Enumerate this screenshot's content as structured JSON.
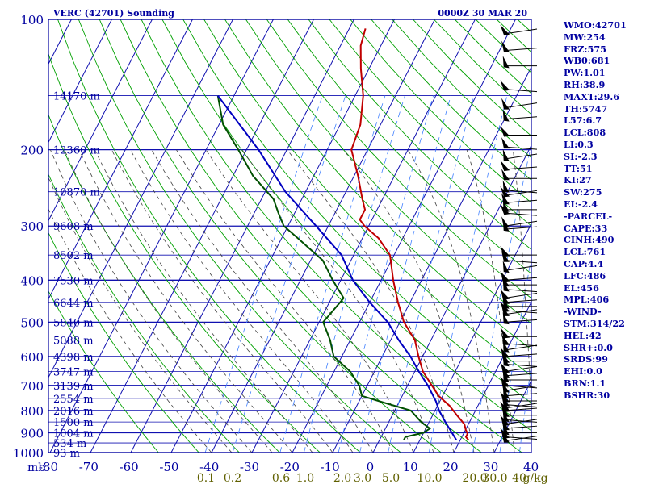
{
  "title_left": "VERC (42701) Sounding",
  "title_right": "0000Z 30 MAR 20",
  "colors": {
    "frame": "#0000a0",
    "isobar": "#1010b0",
    "isotherm": "#1010b0",
    "dry_adiabat": "#00a000",
    "moist_adiabat": "#404040",
    "mixing_ratio": "#4080ff",
    "temperature": "#c00000",
    "dewpoint": "#005000",
    "parcel": "#0000c0",
    "wind": "#000000",
    "mixing_label": "#606000"
  },
  "chart_data": {
    "type": "line",
    "subtype": "skew-T log-p sounding",
    "ylabel": "mb",
    "xlabel": "",
    "y_scale": "log (inverted)",
    "ylim": [
      1000,
      100
    ],
    "xlim": [
      -80,
      40
    ],
    "pressure_ticks": [
      "100",
      "200",
      "300",
      "400",
      "500",
      "600",
      "700",
      "800",
      "900",
      "1000"
    ],
    "temperature_ticks": [
      "-80",
      "-70",
      "-60",
      "-50",
      "-40",
      "-30",
      "-20",
      "-10",
      "0",
      "10",
      "20",
      "30",
      "40"
    ],
    "mixing_ratio_ticks": [
      "0.1",
      "0.2",
      "0.6",
      "1.0",
      "2.0",
      "3.0",
      "5.0",
      "10.0",
      "20.0",
      "30.0",
      "40",
      "g/kg"
    ],
    "height_labels": [
      "14170 m",
      "12360 m",
      "10870 m",
      "9608 m",
      "8502 m",
      "7530 m",
      "6644 m",
      "5840 m",
      "5088 m",
      "4398 m",
      "3747 m",
      "3139 m",
      "2554 m",
      "2016 m",
      "1500 m",
      "1004 m",
      "534 m",
      "93 m"
    ],
    "height_pressures": [
      150,
      200,
      250,
      300,
      350,
      400,
      450,
      500,
      550,
      600,
      650,
      700,
      750,
      800,
      850,
      900,
      950,
      1000
    ],
    "series": [
      {
        "name": "Temperature",
        "points": [
          [
            105,
            -56
          ],
          [
            115,
            -55
          ],
          [
            130,
            -52
          ],
          [
            150,
            -48
          ],
          [
            175,
            -45
          ],
          [
            200,
            -44
          ],
          [
            230,
            -39
          ],
          [
            260,
            -35
          ],
          [
            275,
            -33
          ],
          [
            290,
            -33
          ],
          [
            300,
            -31
          ],
          [
            320,
            -26
          ],
          [
            350,
            -21
          ],
          [
            400,
            -17
          ],
          [
            450,
            -13
          ],
          [
            500,
            -9
          ],
          [
            550,
            -4
          ],
          [
            600,
            -1
          ],
          [
            650,
            2
          ],
          [
            700,
            6
          ],
          [
            740,
            9
          ],
          [
            780,
            13
          ],
          [
            820,
            16
          ],
          [
            860,
            19
          ],
          [
            885,
            20
          ],
          [
            905,
            21
          ],
          [
            920,
            21
          ],
          [
            935,
            22
          ]
        ]
      },
      {
        "name": "Dewpoint",
        "points": [
          [
            150,
            -84
          ],
          [
            175,
            -79
          ],
          [
            200,
            -72
          ],
          [
            230,
            -65
          ],
          [
            260,
            -57
          ],
          [
            280,
            -54
          ],
          [
            300,
            -51
          ],
          [
            320,
            -46
          ],
          [
            360,
            -37
          ],
          [
            400,
            -32
          ],
          [
            440,
            -27
          ],
          [
            470,
            -28
          ],
          [
            500,
            -29
          ],
          [
            550,
            -25
          ],
          [
            600,
            -22
          ],
          [
            650,
            -16
          ],
          [
            700,
            -12
          ],
          [
            740,
            -10
          ],
          [
            770,
            -3
          ],
          [
            800,
            4
          ],
          [
            850,
            8
          ],
          [
            880,
            11
          ],
          [
            900,
            10
          ],
          [
            920,
            6
          ],
          [
            935,
            6
          ]
        ]
      },
      {
        "name": "Parcel",
        "points": [
          [
            150,
            -84
          ],
          [
            200,
            -67
          ],
          [
            250,
            -55
          ],
          [
            300,
            -43
          ],
          [
            350,
            -33
          ],
          [
            400,
            -27
          ],
          [
            450,
            -20
          ],
          [
            500,
            -13
          ],
          [
            550,
            -8
          ],
          [
            600,
            -3
          ],
          [
            650,
            1
          ],
          [
            700,
            5
          ],
          [
            761,
            9
          ],
          [
            800,
            11
          ],
          [
            850,
            14
          ],
          [
            900,
            17
          ],
          [
            935,
            19
          ]
        ]
      }
    ]
  },
  "wind_pressures": [
    108,
    118,
    128,
    145,
    160,
    170,
    185,
    197,
    210,
    222,
    233,
    248,
    255,
    265,
    275,
    280,
    300,
    305,
    350,
    360,
    380,
    400,
    410,
    420,
    440,
    450,
    460,
    470,
    480,
    500,
    540,
    560,
    580,
    600,
    615,
    625,
    650,
    665,
    680,
    700,
    720,
    740,
    760,
    775,
    790,
    800,
    820,
    840,
    860,
    880,
    900,
    920,
    940
  ],
  "indices": [
    "WMO:42701",
    "MW:254",
    "FRZ:575",
    "WB0:681",
    "PW:1.01",
    "RH:38.9",
    "MAXT:29.6",
    "TH:5747",
    "L57:6.7",
    "LCL:808",
    "LI:0.3",
    "SI:-2.3",
    "TT:51",
    "KI:27",
    "SW:275",
    "EI:-2.4",
    "-PARCEL-",
    "CAPE:33",
    "CINH:490",
    "LCL:761",
    "CAP:4.4",
    "LFC:486",
    "EL:456",
    "MPL:406",
    "-WIND-",
    "STM:314/22",
    "HEL:42",
    "SHR+:0.0",
    "SRDS:99",
    "EHI:0.0",
    "BRN:1.1",
    "BSHR:30"
  ]
}
